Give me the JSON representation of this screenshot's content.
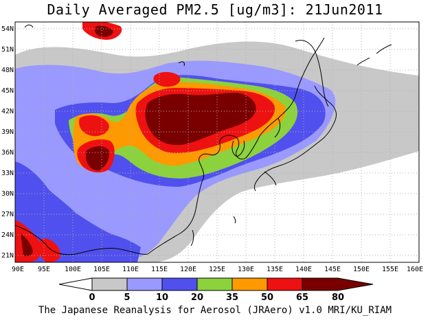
{
  "title": "Daily Averaged PM2.5 [ug/m3]: 21Jun2011",
  "footer": "The Japanese Reanalysis for Aerosol (JRAero) v1.0 MRI/KU_RIAM",
  "map": {
    "lon_range": [
      90,
      160
    ],
    "lat_range": [
      20,
      55
    ],
    "lon_ticks": [
      "90E",
      "95E",
      "100E",
      "105E",
      "110E",
      "115E",
      "120E",
      "125E",
      "130E",
      "135E",
      "140E",
      "145E",
      "150E",
      "155E",
      "160E"
    ],
    "lat_ticks": [
      "21N",
      "24N",
      "27N",
      "30N",
      "33N",
      "36N",
      "39N",
      "42N",
      "45N",
      "48N",
      "51N",
      "54N"
    ],
    "grid": "dotted"
  },
  "colorbar": {
    "levels": [
      "0",
      "5",
      "10",
      "20",
      "35",
      "50",
      "65",
      "80"
    ],
    "colors": [
      "#ffffff",
      "#c8c8c8",
      "#9999ff",
      "#5050ee",
      "#8cd23c",
      "#ff9900",
      "#ee1111",
      "#7a0000"
    ]
  },
  "colors": {
    "land_outline": "#000000",
    "grid": "#b0b0b0"
  }
}
